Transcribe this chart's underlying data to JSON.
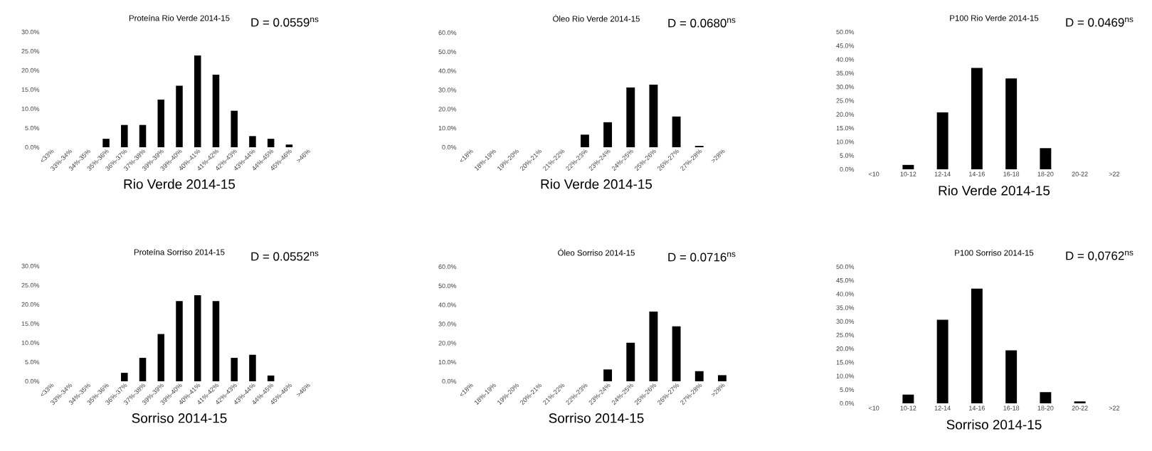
{
  "chart_data": [
    {
      "type": "bar",
      "title": "Proteína Rio Verde 2014-15",
      "xlabel": "Rio Verde 2014-15",
      "annotations": [
        "D = 0.0559$^{ns}$"
      ],
      "color": "#000000",
      "categories": [
        "<33%",
        "33%-34%",
        "34%-35%",
        "35%-36%",
        "36%-37%",
        "37%-38%",
        "39%-39%",
        "39%-40%",
        "40%-41%",
        "41%-42%",
        "42%-43%",
        "43%-44%",
        "44%-45%",
        "45%-46%",
        ">46%"
      ],
      "values": [
        0,
        0,
        0,
        2.2,
        5.8,
        5.8,
        12.4,
        16.0,
        23.9,
        18.9,
        9.5,
        2.9,
        2.2,
        0.7,
        0
      ],
      "ylim": [
        0,
        30
      ],
      "yticks": [
        {
          "value": 0,
          "label": "0.0%"
        },
        {
          "value": 5,
          "label": "5.0%"
        },
        {
          "value": 10,
          "label": "10.0%"
        },
        {
          "value": 15,
          "label": "15.0%"
        },
        {
          "value": 20,
          "label": "20.0%"
        },
        {
          "value": 25,
          "label": "25.0%"
        },
        {
          "value": 30,
          "label": "30.0%"
        }
      ]
    },
    {
      "type": "bar",
      "title": "Óleo Rio Verde  2014-15",
      "xlabel": "Rio Verde 2014-15",
      "annotations": [
        "D = 0.0680$^{ns}$"
      ],
      "color": "#000000",
      "categories": [
        "<18%",
        "18%-19%",
        "19%-20%",
        "20%-21%",
        "21%-22%",
        "22%-23%",
        "23%-24%",
        "24%-25%",
        "25%-26%",
        "26%-27%",
        "27%-28%",
        ">28%"
      ],
      "values": [
        0,
        0,
        0,
        0,
        0,
        6.6,
        13.1,
        31.3,
        32.8,
        16.1,
        0.7,
        0
      ],
      "ylim": [
        0,
        60
      ],
      "yticks": [
        {
          "value": 0,
          "label": "0.0%"
        },
        {
          "value": 10,
          "label": "10.0%"
        },
        {
          "value": 20,
          "label": "20.0%"
        },
        {
          "value": 30,
          "label": "30.0%"
        },
        {
          "value": 40,
          "label": "40.0%"
        },
        {
          "value": 50,
          "label": "50.0%"
        },
        {
          "value": 60,
          "label": "60.0%"
        }
      ]
    },
    {
      "type": "bar",
      "title": "P100 Rio Verde  2014-15",
      "xlabel": "Rio Verde 2014-15",
      "annotations": [
        "D = 0.0469$^{ns}$"
      ],
      "color": "#000000",
      "categories": [
        "<10",
        "10-12",
        "12-14",
        "14-16",
        "16-18",
        "18-20",
        "20-22",
        ">22"
      ],
      "values": [
        0,
        1.6,
        20.7,
        36.9,
        33.1,
        7.7,
        0,
        0
      ],
      "ylim": [
        0,
        50
      ],
      "yticks": [
        {
          "value": 0,
          "label": "0.0%"
        },
        {
          "value": 5,
          "label": "5.0%"
        },
        {
          "value": 10,
          "label": "10.0%"
        },
        {
          "value": 15,
          "label": "15.0%"
        },
        {
          "value": 20,
          "label": "20.0%"
        },
        {
          "value": 25,
          "label": "25.0%"
        },
        {
          "value": 30,
          "label": "30.0%"
        },
        {
          "value": 35,
          "label": "35.0%"
        },
        {
          "value": 40,
          "label": "40.0%"
        },
        {
          "value": 45,
          "label": "45.0%"
        },
        {
          "value": 50,
          "label": "50.0%"
        }
      ]
    },
    {
      "type": "bar",
      "title": "Proteína Sorriso 2014-15",
      "xlabel": "Sorriso 2014-15",
      "annotations": [
        "D = 0.0552$^{ns}$"
      ],
      "color": "#000000",
      "categories": [
        "<33%",
        "33%-34%",
        "34%-35%",
        "35%-36%",
        "36%-37%",
        "37%-38%",
        "39%-39%",
        "39%-40%",
        "40%-41%",
        "41%-42%",
        "42%-43%",
        "43%-44%",
        "44%-45%",
        "45%-46%",
        ">46%"
      ],
      "values": [
        0,
        0,
        0,
        0,
        2.2,
        6.1,
        12.3,
        20.9,
        22.4,
        20.9,
        6.1,
        6.9,
        1.5,
        0,
        0
      ],
      "ylim": [
        0,
        30
      ],
      "yticks": [
        {
          "value": 0,
          "label": "0.0%"
        },
        {
          "value": 5,
          "label": "5.0%"
        },
        {
          "value": 10,
          "label": "10.0%"
        },
        {
          "value": 15,
          "label": "15.0%"
        },
        {
          "value": 20,
          "label": "20.0%"
        },
        {
          "value": 25,
          "label": "25.0%"
        },
        {
          "value": 30,
          "label": "30.0%"
        }
      ]
    },
    {
      "type": "bar",
      "title": "Óleo Sorriso  2014-15",
      "xlabel": "Sorriso 2014-15",
      "annotations": [
        "D = 0.0716$^{ns}$"
      ],
      "color": "#000000",
      "categories": [
        "<18%",
        "18%-19%",
        "19%-20%",
        "20%-21%",
        "21%-22%",
        "22%-23%",
        "23%-24%",
        "24%-25%",
        "25%-26%",
        "26%-27%",
        "27%-28%",
        ">28%"
      ],
      "values": [
        0,
        0,
        0,
        0,
        0,
        0,
        6.2,
        20.2,
        36.5,
        28.8,
        5.3,
        3.2
      ],
      "ylim": [
        0,
        60
      ],
      "yticks": [
        {
          "value": 0,
          "label": "0.0%"
        },
        {
          "value": 10,
          "label": "10.0%"
        },
        {
          "value": 20,
          "label": "20.0%"
        },
        {
          "value": 30,
          "label": "30.0%"
        },
        {
          "value": 40,
          "label": "40.0%"
        },
        {
          "value": 50,
          "label": "50.0%"
        },
        {
          "value": 60,
          "label": "60.0%"
        }
      ]
    },
    {
      "type": "bar",
      "title": "P100 Sorriso 2014-15",
      "xlabel": "Sorriso 2014-15",
      "annotations": [
        "D = 0,0762$^{ns}$"
      ],
      "color": "#000000",
      "categories": [
        "<10",
        "10-12",
        "12-14",
        "14-16",
        "16-18",
        "18-20",
        "20-22",
        ">22"
      ],
      "values": [
        0,
        3.2,
        30.6,
        42.0,
        19.4,
        4.1,
        0.7,
        0
      ],
      "ylim": [
        0,
        50
      ],
      "yticks": [
        {
          "value": 0,
          "label": "0.0%"
        },
        {
          "value": 5,
          "label": "5.0%"
        },
        {
          "value": 10,
          "label": "10.0%"
        },
        {
          "value": 15,
          "label": "15.0%"
        },
        {
          "value": 20,
          "label": "20.0%"
        },
        {
          "value": 25,
          "label": "25.0%"
        },
        {
          "value": 30,
          "label": "30.0%"
        },
        {
          "value": 35,
          "label": "35.0%"
        },
        {
          "value": 40,
          "label": "40.0%"
        },
        {
          "value": 45,
          "label": "45.0%"
        },
        {
          "value": 50,
          "label": "50.0%"
        }
      ]
    }
  ]
}
